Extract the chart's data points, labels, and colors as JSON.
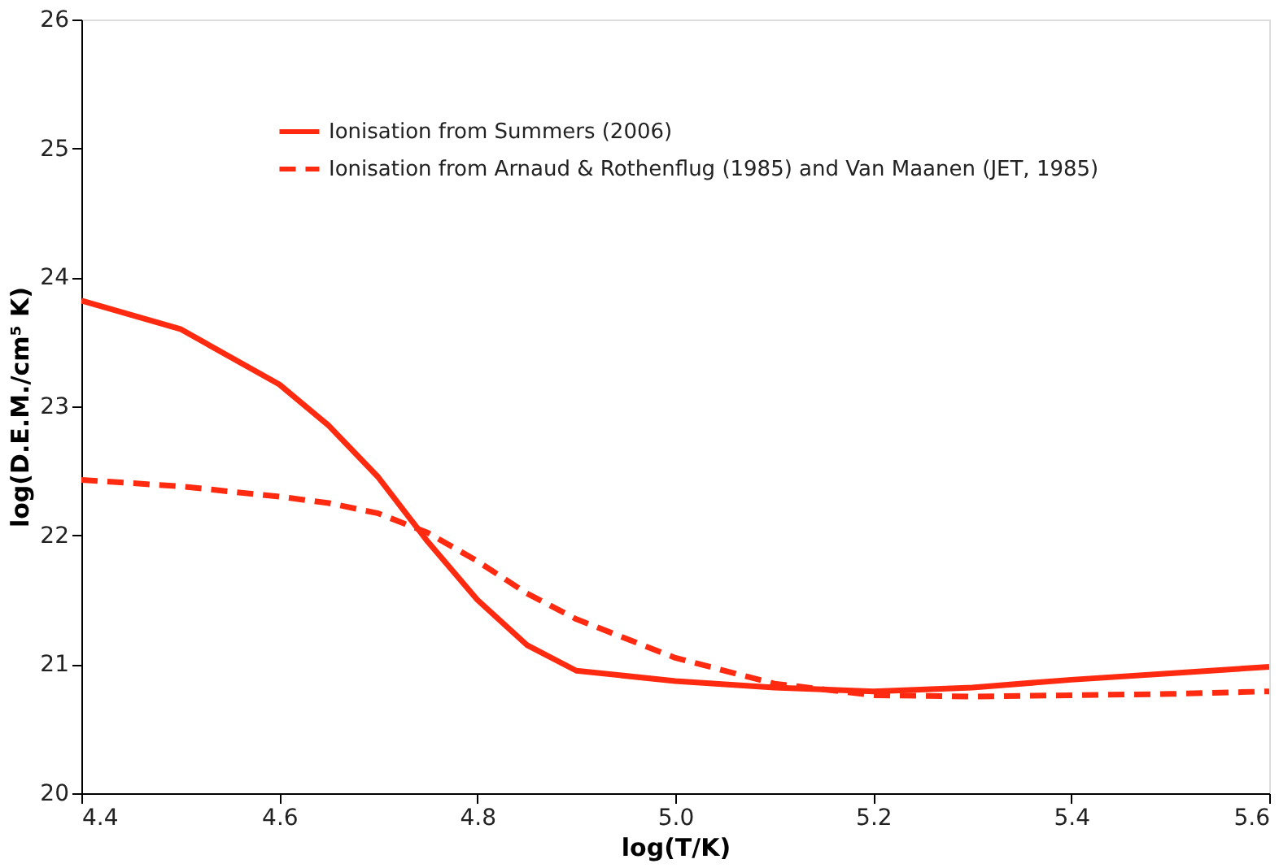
{
  "chart_data": {
    "type": "line",
    "xlabel": "log(T/K)",
    "ylabel": "log(D.E.M./cm⁵ K)",
    "x": [
      4.4,
      4.5,
      4.6,
      4.65,
      4.7,
      4.75,
      4.8,
      4.85,
      4.9,
      5.0,
      5.1,
      5.2,
      5.3,
      5.4,
      5.5,
      5.6
    ],
    "series": [
      {
        "name": "Ionisation from Summers (2006)",
        "color": "#ff2a0f",
        "line_style": "solid",
        "values": [
          23.82,
          23.6,
          23.17,
          22.85,
          22.45,
          21.95,
          21.5,
          21.15,
          20.95,
          20.87,
          20.82,
          20.79,
          20.82,
          20.88,
          20.93,
          20.98
        ]
      },
      {
        "name": "Ionisation from Arnaud & Rothenflug (1985) and Van Maanen (JET, 1985)",
        "color": "#ff2a0f",
        "line_style": "dashed",
        "values": [
          22.43,
          22.38,
          22.3,
          22.25,
          22.17,
          22.02,
          21.8,
          21.55,
          21.35,
          21.05,
          20.85,
          20.76,
          20.75,
          20.76,
          20.77,
          20.79
        ]
      }
    ],
    "xlim": [
      4.4,
      5.6
    ],
    "xticks": [
      {
        "value": 4.4,
        "label": "4.4"
      },
      {
        "value": 4.6,
        "label": "4.6"
      },
      {
        "value": 4.8,
        "label": "4.8"
      },
      {
        "value": 5.0,
        "label": "5.0"
      },
      {
        "value": 5.2,
        "label": "5.2"
      },
      {
        "value": 5.4,
        "label": "5.4"
      },
      {
        "value": 5.6,
        "label": "5.6"
      }
    ],
    "ylim": [
      20,
      26
    ],
    "yticks": [
      20,
      21,
      22,
      23,
      24,
      25,
      26
    ],
    "grid": false,
    "legend": "top",
    "marker": "none"
  }
}
